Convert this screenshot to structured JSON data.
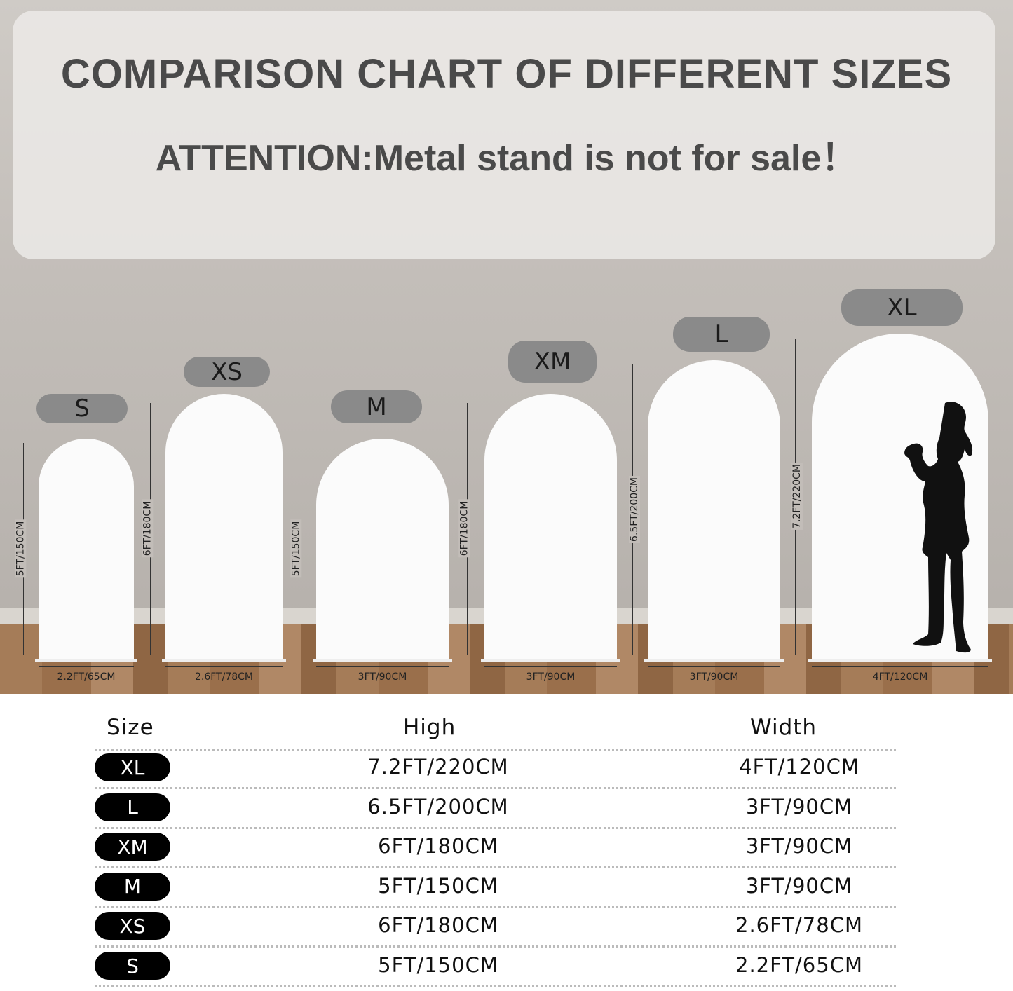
{
  "header": {
    "title": "COMPARISON CHART OF DIFFERENT SIZES",
    "notice": "ATTENTION:Metal stand is not for sale！"
  },
  "arches": [
    {
      "size": "S",
      "height": "5FT/150CM",
      "width": "2.2FT/65CM"
    },
    {
      "size": "XS",
      "height": "6FT/180CM",
      "width": "2.6FT/78CM"
    },
    {
      "size": "M",
      "height": "5FT/150CM",
      "width": "3FT/90CM"
    },
    {
      "size": "XM",
      "height": "6FT/180CM",
      "width": "3FT/90CM"
    },
    {
      "size": "L",
      "height": "6.5FT/200CM",
      "width": "3FT/90CM"
    },
    {
      "size": "XL",
      "height": "7.2FT/220CM",
      "width": "4FT/120CM"
    }
  ],
  "table": {
    "headers": {
      "size": "Size",
      "high": "High",
      "width": "Width"
    },
    "rows": [
      {
        "size": "XL",
        "high": "7.2FT/220CM",
        "width": "4FT/120CM"
      },
      {
        "size": "L",
        "high": "6.5FT/200CM",
        "width": "3FT/90CM"
      },
      {
        "size": "XM",
        "high": "6FT/180CM",
        "width": "3FT/90CM"
      },
      {
        "size": "M",
        "high": "5FT/150CM",
        "width": "3FT/90CM"
      },
      {
        "size": "XS",
        "high": "6FT/180CM",
        "width": "2.6FT/78CM"
      },
      {
        "size": "S",
        "high": "5FT/150CM",
        "width": "2.2FT/65CM"
      }
    ]
  },
  "colors": {
    "pill": "#8a8a8a",
    "table_pill": "#000000",
    "title": "#4a4a4a"
  }
}
